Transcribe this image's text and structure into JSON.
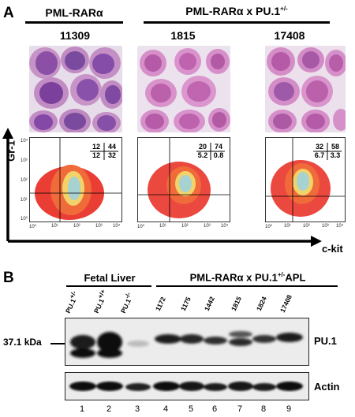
{
  "panel_a": {
    "letter": "A",
    "group_left": {
      "title": "PML-RARα"
    },
    "group_right": {
      "title_main": "PML-RARα x PU.1",
      "title_sup": "+/-"
    },
    "samples": [
      {
        "id": "11309",
        "gates": {
          "ul": "12",
          "ur": "44",
          "ll": "12",
          "lr": "32"
        }
      },
      {
        "id": "1815",
        "gates": {
          "ul": "20",
          "ur": "74",
          "ll": "5.2",
          "lr": "0.8"
        }
      },
      {
        "id": "17408",
        "gates": {
          "ul": "32",
          "ur": "58",
          "ll": "6.7",
          "lr": "3.3"
        }
      }
    ],
    "y_axis_label": "Gr-1",
    "x_axis_label": "c-kit",
    "ticks_y": [
      "10⁴",
      "10³",
      "10²",
      "10¹",
      "10⁰"
    ],
    "ticks_x": [
      "10⁰",
      "10¹",
      "10²",
      "10³",
      "10⁴"
    ]
  },
  "panel_b": {
    "letter": "B",
    "group_left": {
      "title": "Fetal Liver"
    },
    "group_right": {
      "title_main": "PML-RARα x PU.1",
      "title_sup": "+/-",
      "title_suffix": "APL"
    },
    "lanes": [
      {
        "label_main": "PU.1",
        "label_sup": "+/-",
        "number": "1"
      },
      {
        "label_main": "PU.1",
        "label_sup": "+/+",
        "number": "2"
      },
      {
        "label_main": "PU.1",
        "label_sup": "-/-",
        "number": "3"
      },
      {
        "label_main": "1172",
        "label_sup": "",
        "number": "4"
      },
      {
        "label_main": "1175",
        "label_sup": "",
        "number": "5"
      },
      {
        "label_main": "1442",
        "label_sup": "",
        "number": "6"
      },
      {
        "label_main": "1815",
        "label_sup": "",
        "number": "7"
      },
      {
        "label_main": "1824",
        "label_sup": "",
        "number": "8"
      },
      {
        "label_main": "17408",
        "label_sup": "",
        "number": "9"
      }
    ],
    "mw_marker": "37.1 kDa",
    "blot_top_label": "PU.1",
    "blot_bottom_label": "Actin"
  }
}
